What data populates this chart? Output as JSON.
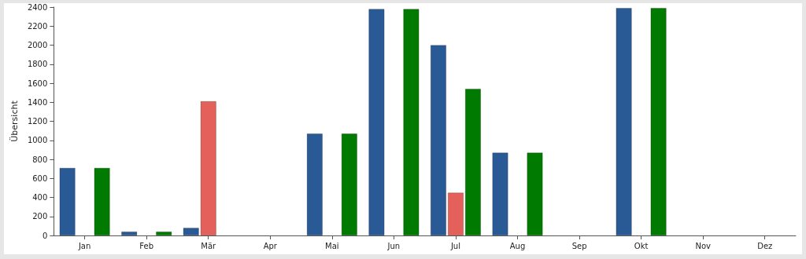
{
  "chart_data": {
    "type": "bar",
    "ylabel": "Übersicht",
    "categories": [
      "Jan",
      "Feb",
      "Mär",
      "Apr",
      "Mai",
      "Jun",
      "Jul",
      "Aug",
      "Sep",
      "Okt",
      "Nov",
      "Dez"
    ],
    "series": [
      {
        "color": "#2a5a96",
        "values": [
          710,
          40,
          80,
          null,
          1070,
          2380,
          2000,
          870,
          null,
          2390,
          null,
          null
        ]
      },
      {
        "color": "#e4605a",
        "values": [
          null,
          null,
          1410,
          null,
          null,
          null,
          450,
          null,
          null,
          null,
          null,
          null
        ]
      },
      {
        "color": "#007a00",
        "values": [
          710,
          40,
          null,
          null,
          1070,
          2380,
          1540,
          870,
          null,
          2390,
          null,
          null
        ]
      }
    ],
    "ylim": [
      0,
      2400
    ],
    "yticks": [
      0,
      200,
      400,
      600,
      800,
      1000,
      1200,
      1400,
      1600,
      1800,
      2000,
      2200,
      2400
    ],
    "grid": false
  }
}
